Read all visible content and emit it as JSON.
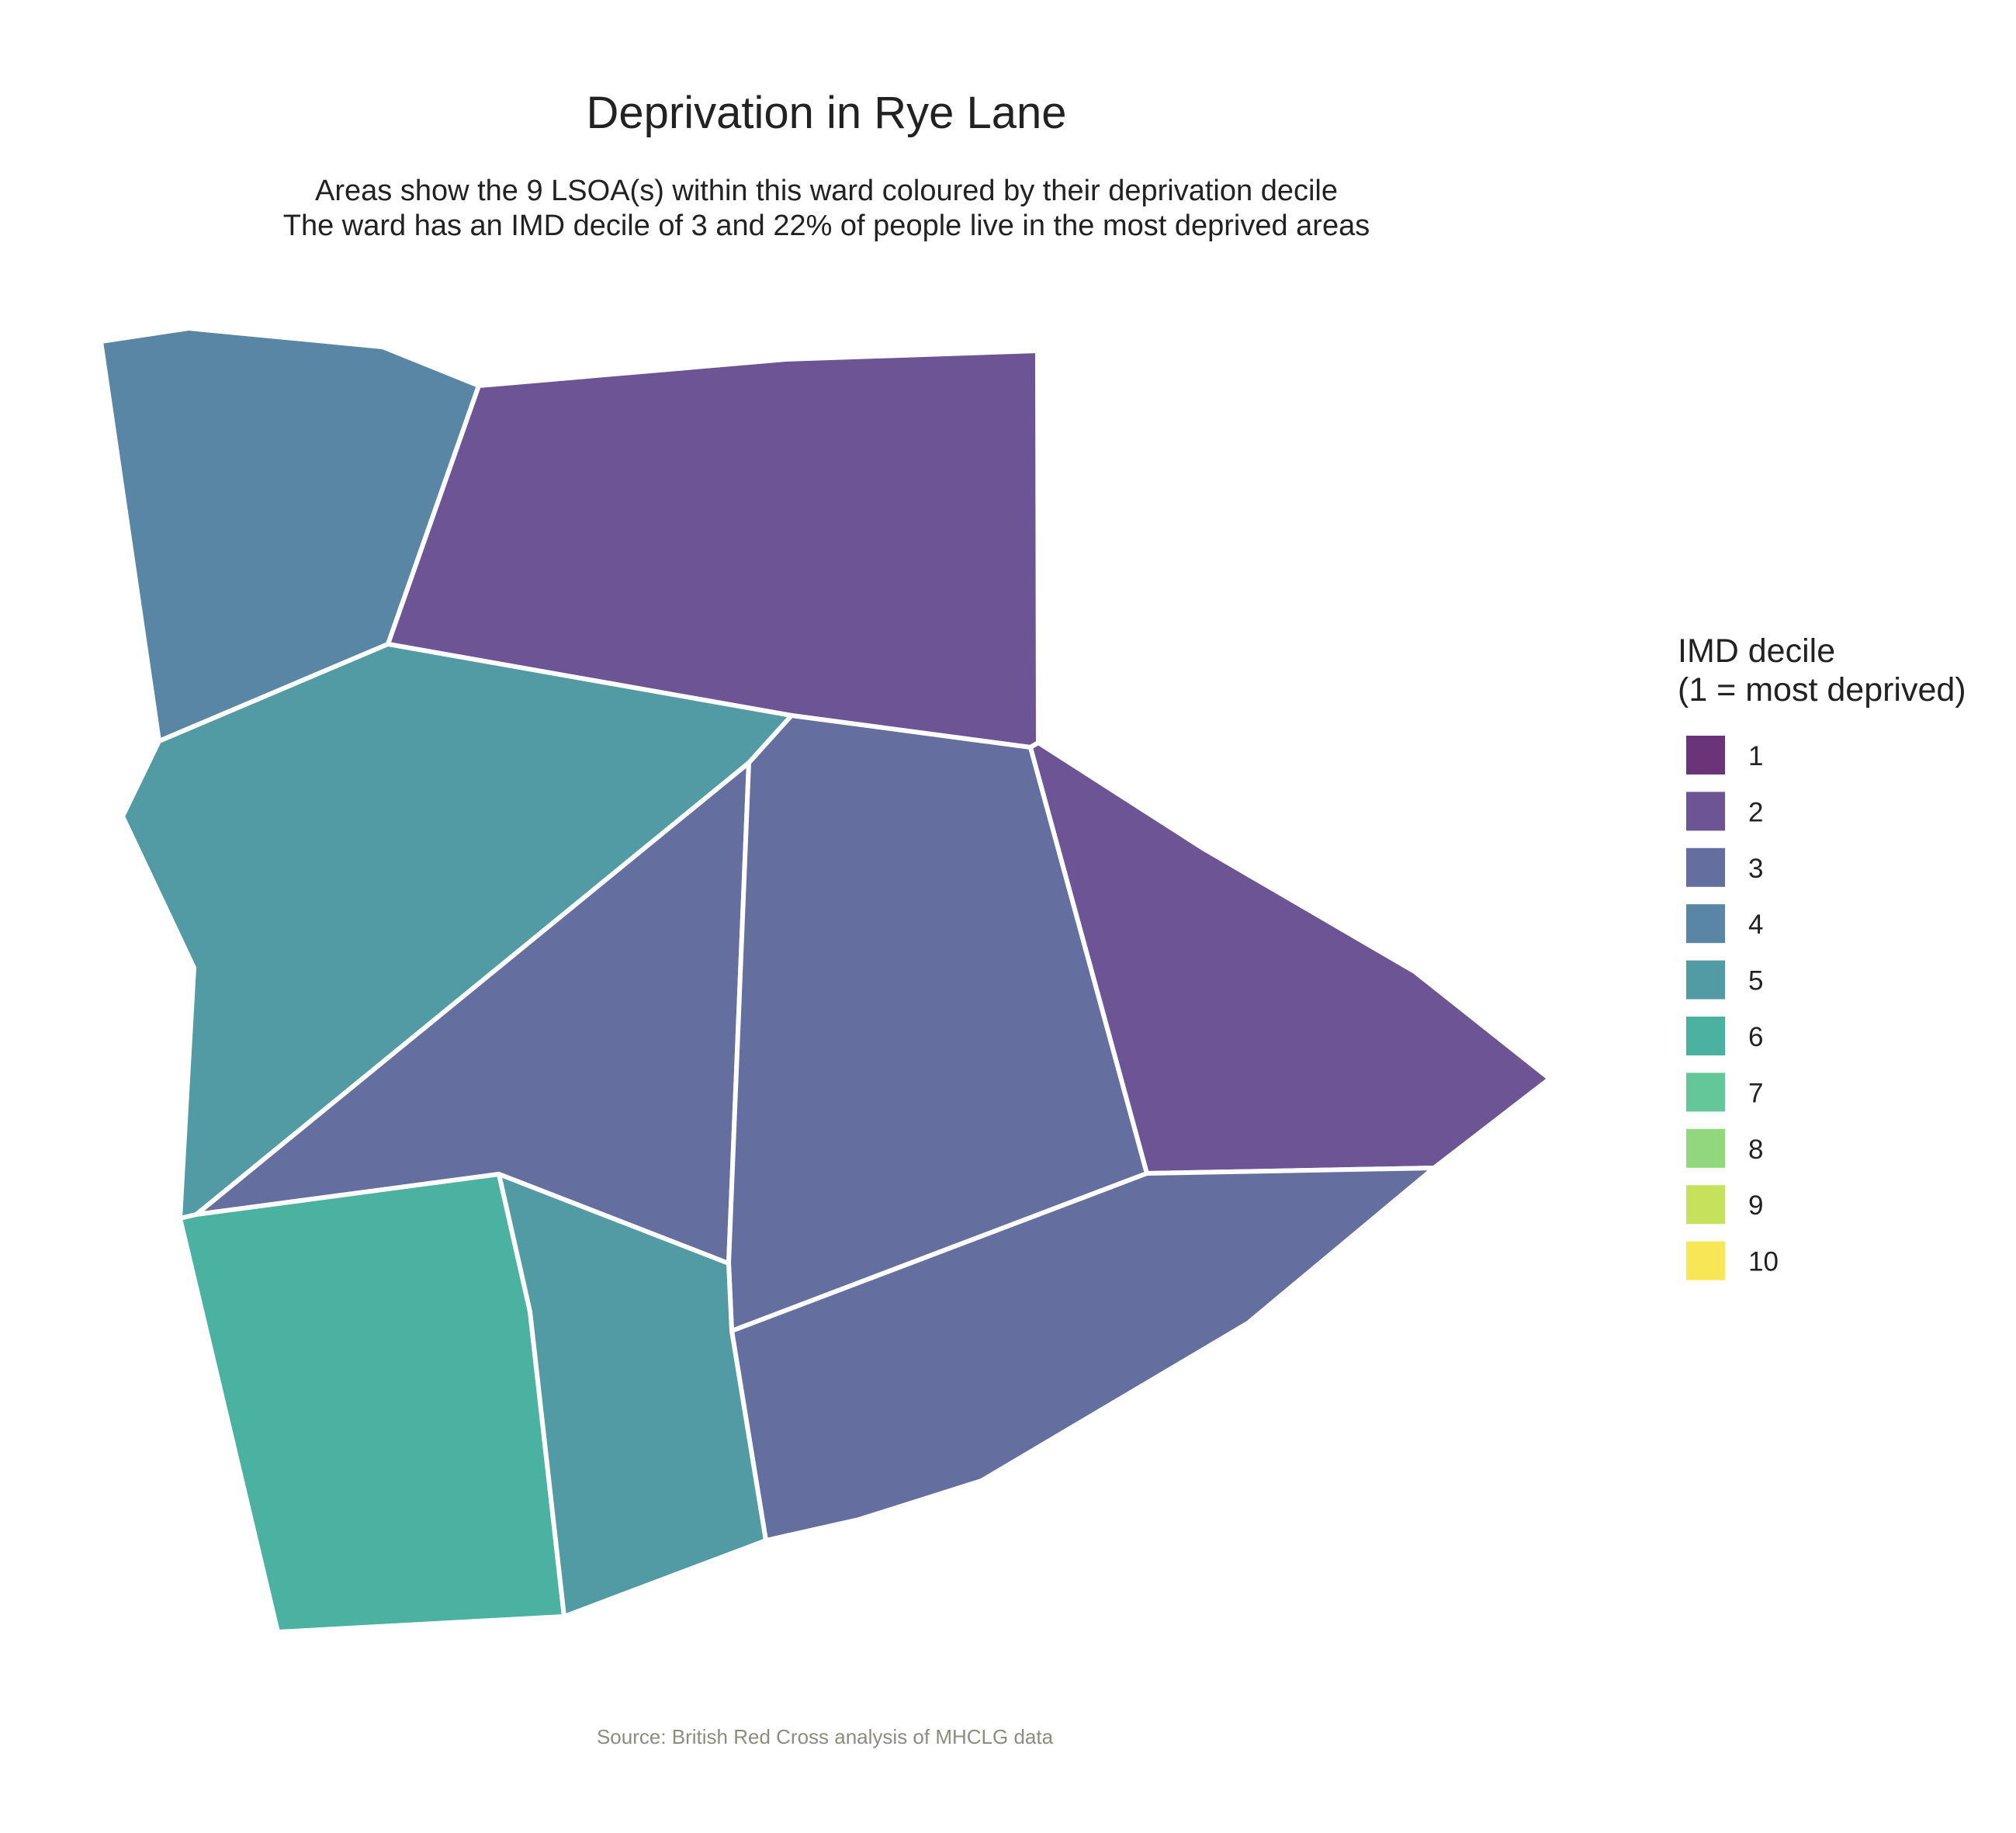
{
  "title": "Deprivation in Rye Lane",
  "subtitle_line1": "Areas show the 9 LSOA(s) within this ward coloured by their deprivation decile",
  "subtitle_line2": "The ward has an IMD decile of 3 and 22% of people live in the most deprived areas",
  "caption": "Source: British Red Cross analysis of MHCLG data",
  "legend": {
    "title_line1": "IMD decile",
    "title_line2": "(1 = most deprived)",
    "items": [
      {
        "label": "1",
        "color": "#6B3479"
      },
      {
        "label": "2",
        "color": "#6D5595"
      },
      {
        "label": "3",
        "color": "#656F9F"
      },
      {
        "label": "4",
        "color": "#5886A4"
      },
      {
        "label": "5",
        "color": "#529BA5"
      },
      {
        "label": "6",
        "color": "#4BB1A0"
      },
      {
        "label": "7",
        "color": "#63C79A"
      },
      {
        "label": "8",
        "color": "#92D77D"
      },
      {
        "label": "9",
        "color": "#C6E25C"
      },
      {
        "label": "10",
        "color": "#F9E657"
      }
    ]
  },
  "areas": [
    {
      "id": "north-west",
      "decile": 4
    },
    {
      "id": "north",
      "decile": 2
    },
    {
      "id": "west",
      "decile": 5
    },
    {
      "id": "central-west",
      "decile": 3
    },
    {
      "id": "central",
      "decile": 3
    },
    {
      "id": "east",
      "decile": 2
    },
    {
      "id": "south-east",
      "decile": 3
    },
    {
      "id": "south-west",
      "decile": 6
    },
    {
      "id": "south",
      "decile": 5
    }
  ]
}
